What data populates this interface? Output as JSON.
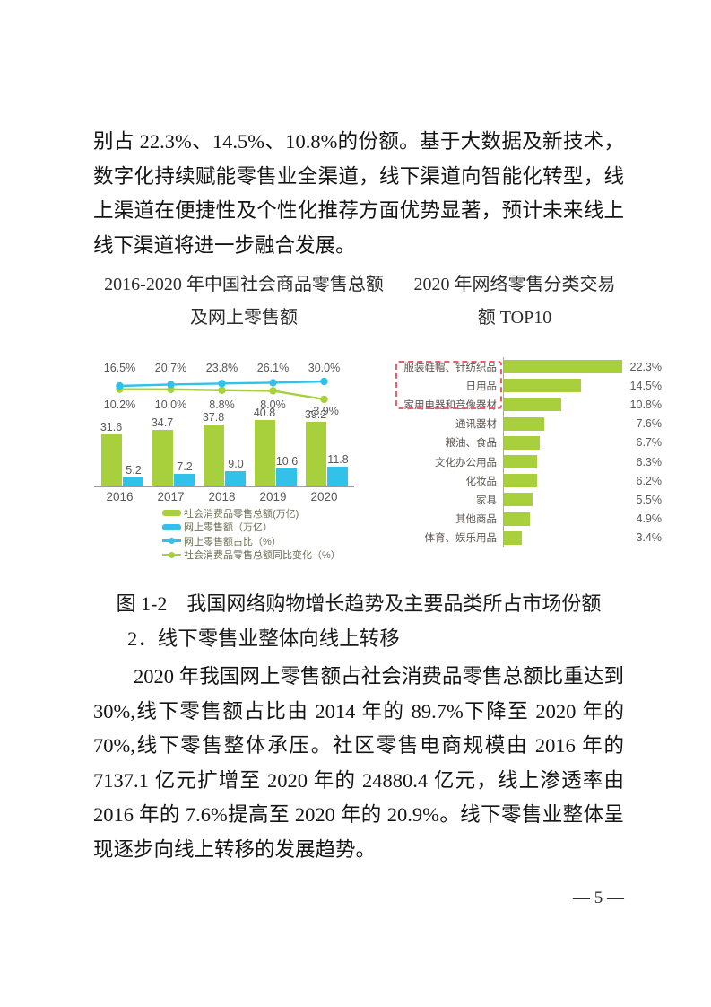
{
  "paragraph_top": "别占 22.3%、14.5%、10.8%的份额。基于大数据及新技术，数字化持续赋能零售业全渠道，线下渠道向智能化转型，线上渠道在便捷性及个性化推荐方面优势显著，预计未来线上线下渠道将进一步融合发展。",
  "charts_header": {
    "left_line1": "2016-2020 年中国社会商品零售总额",
    "left_line2": "及网上零售额",
    "right_line1": "2020 年网络零售分类交易",
    "right_line2": "额 TOP10"
  },
  "figure_caption": "图 1-2　我国网络购物增长趋势及主要品类所占市场份额",
  "section_heading": "2．线下零售业整体向线上转移",
  "paragraph_body": "2020 年我国网上零售额占社会消费品零售总额比重达到30%,线下零售额占比由 2014 年的 89.7%下降至 2020 年的 70%,线下零售整体承压。社区零售电商规模由 2016 年的 7137.1 亿元扩增至 2020 年的 24880.4 亿元，线上渗透率由 2016 年的 7.6%提高至 2020 年的 20.9%。线下零售业整体呈现逐步向线上转移的发展趋势。",
  "page": {
    "number": "— 5 —"
  },
  "colors": {
    "green": "#a8d03c",
    "cyan": "#32c1e8",
    "label_gray": "#595757",
    "legend_text": "#6e6e55",
    "axis_gray": "#9c9c9c",
    "highlight_red": "#ed5e6d"
  },
  "chart_data": [
    {
      "type": "bar",
      "title": "2016-2020年中国社会商品零售总额及网上零售额",
      "categories": [
        "2016",
        "2017",
        "2018",
        "2019",
        "2020"
      ],
      "series": [
        {
          "name": "社会消费品零售总额(万亿)",
          "kind": "bar",
          "color": "#a8d03c",
          "values": [
            31.6,
            34.7,
            37.8,
            40.8,
            39.2
          ],
          "labels": [
            "31.6",
            "34.7",
            "37.8",
            "40.8",
            "39.2"
          ]
        },
        {
          "name": "网上零售额（万亿）",
          "kind": "bar",
          "color": "#32c1e8",
          "values": [
            5.2,
            7.2,
            9.0,
            10.6,
            11.8
          ],
          "labels": [
            "5.2",
            "7.2",
            "9.0",
            "10.6",
            "11.8"
          ]
        },
        {
          "name": "网上零售额占比（%）",
          "kind": "line",
          "color": "#32c1e8",
          "values": [
            16.5,
            20.7,
            23.8,
            26.1,
            30.0
          ],
          "labels": [
            "16.5%",
            "20.7%",
            "23.8%",
            "26.1%",
            "30.0%"
          ]
        },
        {
          "name": "社会消费品零售总额同比变化（%）",
          "kind": "line",
          "color": "#a8d03c",
          "values": [
            10.2,
            10.0,
            8.8,
            8.0,
            -3.9
          ],
          "labels": [
            "10.2%",
            "10.0%",
            "8.8%",
            "8.0%",
            "-3.9%"
          ]
        }
      ],
      "legend_position": "bottom-left",
      "grid": false
    },
    {
      "type": "bar",
      "orientation": "horizontal",
      "title": "2020年网络零售分类交易额TOP10",
      "categories": [
        "服装鞋帽、针纺织品",
        "日用品",
        "家用电器和音像器材",
        "通讯器材",
        "粮油、食品",
        "文化办公用品",
        "化妆品",
        "家具",
        "其他商品",
        "体育、娱乐用品"
      ],
      "values": [
        22.3,
        14.5,
        10.8,
        7.6,
        6.7,
        6.3,
        6.2,
        5.5,
        4.9,
        3.4
      ],
      "value_labels": [
        "22.3%",
        "14.5%",
        "10.8%",
        "7.6%",
        "6.7%",
        "6.3%",
        "6.2%",
        "5.5%",
        "4.9%",
        "3.4%"
      ],
      "bar_color": "#a8d03c",
      "highlighted_categories": [
        "服装鞋帽、针纺织品",
        "日用品",
        "家用电器和音像器材"
      ],
      "xlim": [
        0,
        24
      ],
      "grid": false
    }
  ]
}
